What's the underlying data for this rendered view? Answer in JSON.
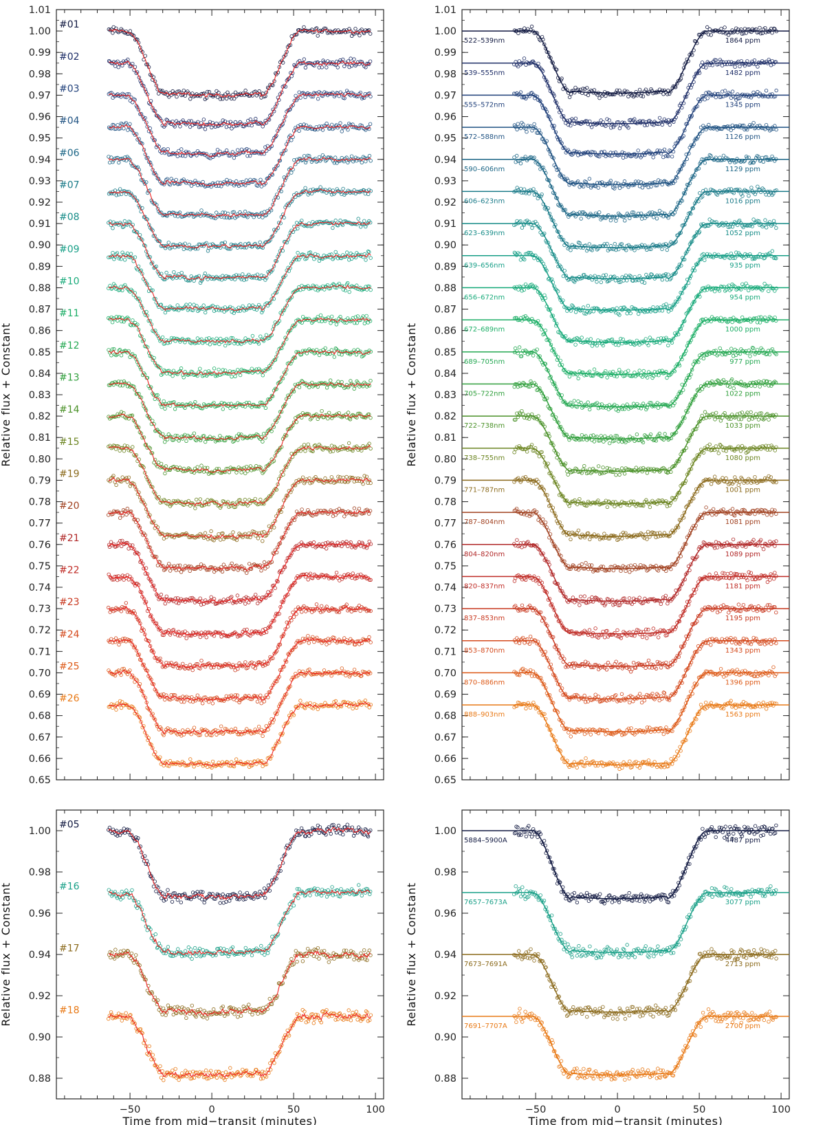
{
  "chart_data": [
    {
      "panel": "top-left",
      "type": "scatter",
      "title": "",
      "xlabel": "Time from mid−transit (minutes)",
      "ylabel": "Relative flux + Constant",
      "xlim": [
        -95,
        105
      ],
      "ylim": [
        0.65,
        1.01
      ],
      "xticks": [
        -50,
        0,
        50,
        100
      ],
      "xtick_labels": [],
      "ytick_labels": [
        "1.01",
        "1.00",
        "0.99",
        "0.98",
        "0.97",
        "0.96",
        "0.95",
        "0.94",
        "0.93",
        "0.92",
        "0.91",
        "0.90",
        "0.89",
        "0.88",
        "0.87",
        "0.86",
        "0.85",
        "0.84",
        "0.83",
        "0.82",
        "0.81",
        "0.80",
        "0.79",
        "0.78",
        "0.77",
        "0.76",
        "0.75",
        "0.74",
        "0.73",
        "0.72",
        "0.71",
        "0.70",
        "0.69",
        "0.68",
        "0.67",
        "0.66",
        "0.65"
      ],
      "fit_line_color": "#ee2222",
      "series": [
        {
          "name": "#01",
          "baseline": 1.0,
          "depth": 0.03,
          "color": "#101840"
        },
        {
          "name": "#02",
          "baseline": 0.985,
          "depth": 0.0285,
          "color": "#1c2c66"
        },
        {
          "name": "#03",
          "baseline": 0.97,
          "depth": 0.0275,
          "color": "#20407a"
        },
        {
          "name": "#04",
          "baseline": 0.955,
          "depth": 0.0265,
          "color": "#1f5282"
        },
        {
          "name": "#06",
          "baseline": 0.94,
          "depth": 0.0262,
          "color": "#1c6686"
        },
        {
          "name": "#07",
          "baseline": 0.925,
          "depth": 0.0258,
          "color": "#197a88"
        },
        {
          "name": "#08",
          "baseline": 0.91,
          "depth": 0.0254,
          "color": "#178c88"
        },
        {
          "name": "#09",
          "baseline": 0.895,
          "depth": 0.025,
          "color": "#169e86"
        },
        {
          "name": "#10",
          "baseline": 0.88,
          "depth": 0.025,
          "color": "#18aa7a"
        },
        {
          "name": "#11",
          "baseline": 0.865,
          "depth": 0.025,
          "color": "#1cae66"
        },
        {
          "name": "#12",
          "baseline": 0.85,
          "depth": 0.0252,
          "color": "#24a852"
        },
        {
          "name": "#13",
          "baseline": 0.835,
          "depth": 0.0254,
          "color": "#2e9e3a"
        },
        {
          "name": "#14",
          "baseline": 0.82,
          "depth": 0.0255,
          "color": "#4a9128"
        },
        {
          "name": "#15",
          "baseline": 0.805,
          "depth": 0.0258,
          "color": "#6b8420"
        },
        {
          "name": "#19",
          "baseline": 0.79,
          "depth": 0.0262,
          "color": "#8b6a1c"
        },
        {
          "name": "#20",
          "baseline": 0.775,
          "depth": 0.0262,
          "color": "#a0401f"
        },
        {
          "name": "#21",
          "baseline": 0.76,
          "depth": 0.0264,
          "color": "#b02626"
        },
        {
          "name": "#22",
          "baseline": 0.745,
          "depth": 0.0268,
          "color": "#bf2a24"
        },
        {
          "name": "#23",
          "baseline": 0.73,
          "depth": 0.027,
          "color": "#c8381f"
        },
        {
          "name": "#24",
          "baseline": 0.715,
          "depth": 0.0272,
          "color": "#d4491c"
        },
        {
          "name": "#25",
          "baseline": 0.7,
          "depth": 0.0275,
          "color": "#dd5a18"
        },
        {
          "name": "#26",
          "baseline": 0.685,
          "depth": 0.028,
          "color": "#e87814"
        }
      ]
    },
    {
      "panel": "top-right",
      "type": "scatter",
      "title": "",
      "xlabel": "Time from mid−transit (minutes)",
      "ylabel": "Relative flux + Constant",
      "xlim": [
        -95,
        105
      ],
      "ylim": [
        0.65,
        1.01
      ],
      "xticks": [
        -50,
        0,
        50,
        100
      ],
      "xtick_labels": [],
      "ytick_labels": [
        "1.01",
        "1.00",
        "0.99",
        "0.98",
        "0.97",
        "0.96",
        "0.95",
        "0.94",
        "0.93",
        "0.92",
        "0.91",
        "0.90",
        "0.89",
        "0.88",
        "0.87",
        "0.86",
        "0.85",
        "0.84",
        "0.83",
        "0.82",
        "0.81",
        "0.80",
        "0.79",
        "0.78",
        "0.77",
        "0.76",
        "0.75",
        "0.74",
        "0.73",
        "0.72",
        "0.71",
        "0.70",
        "0.69",
        "0.68",
        "0.67",
        "0.66",
        "0.65"
      ],
      "series": [
        {
          "name": "522–539nm",
          "scatter_label": "1864 ppm",
          "baseline": 1.0,
          "depth": 0.029,
          "color": "#101840"
        },
        {
          "name": "539–555nm",
          "scatter_label": "1482 ppm",
          "baseline": 0.985,
          "depth": 0.0283,
          "color": "#1c2c66"
        },
        {
          "name": "555–572nm",
          "scatter_label": "1345 ppm",
          "baseline": 0.97,
          "depth": 0.0275,
          "color": "#20407a"
        },
        {
          "name": "572–588nm",
          "scatter_label": "1126 ppm",
          "baseline": 0.955,
          "depth": 0.0268,
          "color": "#1f5282"
        },
        {
          "name": "590–606nm",
          "scatter_label": "1129 ppm",
          "baseline": 0.94,
          "depth": 0.0265,
          "color": "#1c6686"
        },
        {
          "name": "606–623nm",
          "scatter_label": "1016 ppm",
          "baseline": 0.925,
          "depth": 0.0262,
          "color": "#197a88"
        },
        {
          "name": "623–639nm",
          "scatter_label": "1052 ppm",
          "baseline": 0.91,
          "depth": 0.0258,
          "color": "#178c88"
        },
        {
          "name": "639–656nm",
          "scatter_label": "935 ppm",
          "baseline": 0.895,
          "depth": 0.0255,
          "color": "#169e86"
        },
        {
          "name": "656–672nm",
          "scatter_label": "954 ppm",
          "baseline": 0.88,
          "depth": 0.0255,
          "color": "#18aa7a"
        },
        {
          "name": "672–689nm",
          "scatter_label": "1000 ppm",
          "baseline": 0.865,
          "depth": 0.0255,
          "color": "#1cae66"
        },
        {
          "name": "689–705nm",
          "scatter_label": "977 ppm",
          "baseline": 0.85,
          "depth": 0.0256,
          "color": "#24a852"
        },
        {
          "name": "705–722nm",
          "scatter_label": "1022 ppm",
          "baseline": 0.835,
          "depth": 0.0256,
          "color": "#2e9e3a"
        },
        {
          "name": "722–738nm",
          "scatter_label": "1033 ppm",
          "baseline": 0.82,
          "depth": 0.0258,
          "color": "#4a9128"
        },
        {
          "name": "738–755nm",
          "scatter_label": "1080 ppm",
          "baseline": 0.805,
          "depth": 0.026,
          "color": "#6b8420"
        },
        {
          "name": "771–787nm",
          "scatter_label": "1001 ppm",
          "baseline": 0.79,
          "depth": 0.0262,
          "color": "#8b6a1c"
        },
        {
          "name": "787–804nm",
          "scatter_label": "1081 ppm",
          "baseline": 0.775,
          "depth": 0.0263,
          "color": "#a0401f"
        },
        {
          "name": "804–820nm",
          "scatter_label": "1089 ppm",
          "baseline": 0.76,
          "depth": 0.0265,
          "color": "#b02626"
        },
        {
          "name": "820–837nm",
          "scatter_label": "1181 ppm",
          "baseline": 0.745,
          "depth": 0.0268,
          "color": "#bf2a24"
        },
        {
          "name": "837–853nm",
          "scatter_label": "1195 ppm",
          "baseline": 0.73,
          "depth": 0.027,
          "color": "#c8381f"
        },
        {
          "name": "853–870nm",
          "scatter_label": "1343 ppm",
          "baseline": 0.715,
          "depth": 0.0272,
          "color": "#d4491c"
        },
        {
          "name": "870–886nm",
          "scatter_label": "1396 ppm",
          "baseline": 0.7,
          "depth": 0.0275,
          "color": "#dd5a18"
        },
        {
          "name": "888–903nm",
          "scatter_label": "1563 ppm",
          "baseline": 0.685,
          "depth": 0.028,
          "color": "#e87814"
        }
      ]
    },
    {
      "panel": "bottom-left",
      "type": "scatter",
      "title": "",
      "xlabel": "Time from mid−transit (minutes)",
      "ylabel": "Relative flux + Constant",
      "xlim": [
        -95,
        105
      ],
      "ylim": [
        0.87,
        1.01
      ],
      "xticks": [
        -50,
        0,
        50,
        100
      ],
      "xtick_labels": [
        "−50",
        "0",
        "50",
        "100"
      ],
      "ytick_labels": [
        "1.00",
        "0.98",
        "0.96",
        "0.94",
        "0.92",
        "0.90",
        "0.88"
      ],
      "fit_line_color": "#ee2222",
      "series": [
        {
          "name": "#05",
          "baseline": 1.0,
          "depth": 0.032,
          "color": "#101840"
        },
        {
          "name": "#16",
          "baseline": 0.97,
          "depth": 0.029,
          "color": "#1aa088"
        },
        {
          "name": "#17",
          "baseline": 0.94,
          "depth": 0.028,
          "color": "#8b6a1c"
        },
        {
          "name": "#18",
          "baseline": 0.91,
          "depth": 0.0285,
          "color": "#e87814"
        }
      ]
    },
    {
      "panel": "bottom-right",
      "type": "scatter",
      "title": "",
      "xlabel": "Time from mid−transit (minutes)",
      "ylabel": "Relative flux + Constant",
      "xlim": [
        -95,
        105
      ],
      "ylim": [
        0.87,
        1.01
      ],
      "xticks": [
        -50,
        0,
        50,
        100
      ],
      "xtick_labels": [
        "−50",
        "0",
        "50",
        "100"
      ],
      "ytick_labels": [
        "1.00",
        "0.98",
        "0.96",
        "0.94",
        "0.92",
        "0.90",
        "0.88"
      ],
      "series": [
        {
          "name": "5884–5900A",
          "scatter_label": "4487 ppm",
          "baseline": 1.0,
          "depth": 0.033,
          "color": "#101840"
        },
        {
          "name": "7657–7673A",
          "scatter_label": "3077 ppm",
          "baseline": 0.97,
          "depth": 0.029,
          "color": "#1aa088"
        },
        {
          "name": "7673–7691A",
          "scatter_label": "2713 ppm",
          "baseline": 0.94,
          "depth": 0.028,
          "color": "#8b6a1c"
        },
        {
          "name": "7691–7707A",
          "scatter_label": "2700 ppm",
          "baseline": 0.91,
          "depth": 0.0285,
          "color": "#e87814"
        }
      ]
    }
  ]
}
